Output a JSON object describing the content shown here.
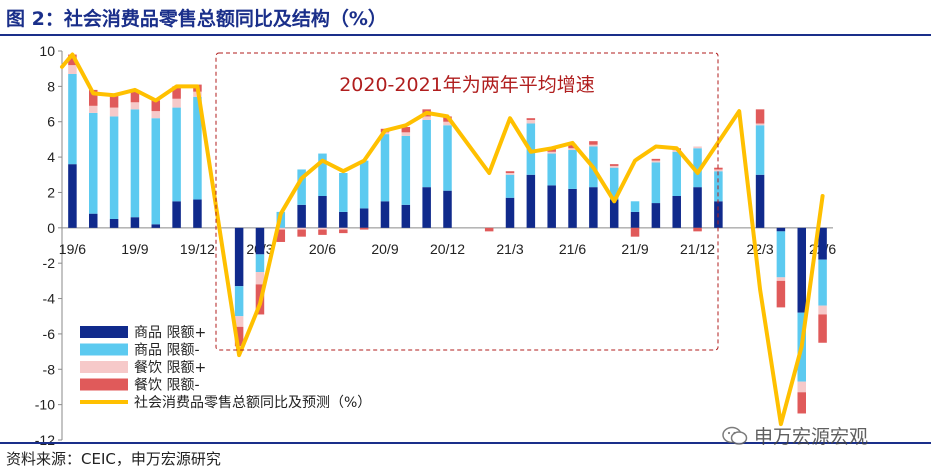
{
  "header": {
    "title": "图 2：社会消费品零售总额同比及结构（%）"
  },
  "footer": {
    "source": "资料来源：CEIC，申万宏源研究",
    "watermark": "申万宏源宏观"
  },
  "colors": {
    "goods_above": "#102a8c",
    "goods_below": "#5ccaf0",
    "catering_above": "#f6c9c9",
    "catering_below": "#e05a5a",
    "line": "#ffc000",
    "annotation": "#b01e1e"
  },
  "chart_data": {
    "type": "bar",
    "stacked": true,
    "title": "社会消费品零售总额同比及结构（%）",
    "ylim": [
      -12,
      10
    ],
    "yticks": [
      10,
      8,
      6,
      4,
      2,
      0,
      -2,
      -4,
      -6,
      -8,
      -10,
      -12
    ],
    "x_tick_labels": [
      {
        "index": 0,
        "label": "19/6"
      },
      {
        "index": 3,
        "label": "19/9"
      },
      {
        "index": 6,
        "label": "19/12"
      },
      {
        "index": 9,
        "label": "20/3"
      },
      {
        "index": 12,
        "label": "20/6"
      },
      {
        "index": 15,
        "label": "20/9"
      },
      {
        "index": 18,
        "label": "20/12"
      },
      {
        "index": 21,
        "label": "21/3"
      },
      {
        "index": 24,
        "label": "21/6"
      },
      {
        "index": 27,
        "label": "21/9"
      },
      {
        "index": 30,
        "label": "21/12"
      },
      {
        "index": 33,
        "label": "22/3"
      },
      {
        "index": 36,
        "label": "22/6"
      }
    ],
    "categories": [
      "19/6",
      "19/7",
      "19/8",
      "19/9",
      "19/10",
      "19/11",
      "19/12",
      "20/1",
      "20/2",
      "20/3",
      "20/4",
      "20/5",
      "20/6",
      "20/7",
      "20/8",
      "20/9",
      "20/10",
      "20/11",
      "20/12",
      "21/1",
      "21/2",
      "21/3",
      "21/4",
      "21/5",
      "21/6",
      "21/7",
      "21/8",
      "21/9",
      "21/10",
      "21/11",
      "21/12",
      "22/1",
      "22/2",
      "22/3",
      "22/4",
      "22/5",
      "22/6"
    ],
    "series": [
      {
        "name": "商品 限额+",
        "values": [
          3.6,
          0.8,
          0.5,
          0.6,
          0.2,
          1.5,
          1.6,
          null,
          -3.3,
          -1.5,
          0.0,
          1.3,
          1.8,
          0.9,
          1.1,
          1.5,
          1.3,
          2.3,
          2.1,
          null,
          0.0,
          1.7,
          3.0,
          2.4,
          2.2,
          2.3,
          1.6,
          0.9,
          1.4,
          1.8,
          2.3,
          1.5,
          null,
          3.0,
          -0.2,
          -4.8,
          -1.8
        ]
      },
      {
        "name": "商品 限额-",
        "values": [
          5.1,
          5.7,
          5.8,
          6.1,
          6.0,
          5.3,
          5.8,
          null,
          -1.7,
          -1.0,
          0.9,
          2.0,
          2.4,
          2.2,
          2.7,
          3.8,
          3.9,
          3.8,
          3.7,
          null,
          0.0,
          1.3,
          2.9,
          1.8,
          2.2,
          2.3,
          1.8,
          0.6,
          2.3,
          2.5,
          2.2,
          1.7,
          null,
          2.8,
          -2.6,
          -3.9,
          -2.6
        ]
      },
      {
        "name": "餐饮 限额+",
        "values": [
          0.5,
          0.4,
          0.5,
          0.4,
          0.4,
          0.5,
          0.3,
          null,
          -0.6,
          -0.7,
          -0.1,
          -0.1,
          -0.1,
          -0.1,
          0.0,
          0.1,
          0.2,
          0.2,
          0.2,
          null,
          0.0,
          0.1,
          0.2,
          0.1,
          0.1,
          0.1,
          0.1,
          0.0,
          0.1,
          0.1,
          0.1,
          0.1,
          null,
          0.1,
          -0.2,
          -0.6,
          -0.5
        ]
      },
      {
        "name": "餐饮 限额-",
        "values": [
          0.6,
          0.9,
          0.8,
          0.7,
          0.6,
          0.7,
          0.4,
          null,
          -1.1,
          -1.7,
          -0.7,
          -0.4,
          -0.3,
          -0.2,
          -0.1,
          0.2,
          0.3,
          0.4,
          0.3,
          null,
          -0.2,
          0.1,
          0.1,
          0.2,
          0.2,
          0.2,
          0.1,
          -0.5,
          0.1,
          0.1,
          -0.2,
          0.1,
          null,
          0.8,
          -1.5,
          -1.2,
          -1.6
        ]
      }
    ],
    "line": {
      "name": "社会消费品零售总额同比及预测（%）",
      "values": [
        9.8,
        7.6,
        7.5,
        7.8,
        7.2,
        8.0,
        8.0,
        null,
        -7.2,
        -4.3,
        0.8,
        2.8,
        3.8,
        3.2,
        3.8,
        5.5,
        5.8,
        6.5,
        6.3,
        null,
        3.1,
        6.2,
        4.3,
        4.5,
        4.8,
        3.4,
        1.5,
        3.8,
        4.6,
        4.5,
        3.1,
        null,
        6.6,
        -3.5,
        -11.1,
        -6.7,
        1.8
      ],
      "start_value": 9.1
    },
    "annotation": {
      "text": "2020-2021年为两年平均增速"
    },
    "legend": {
      "position": "bottom-left"
    }
  }
}
